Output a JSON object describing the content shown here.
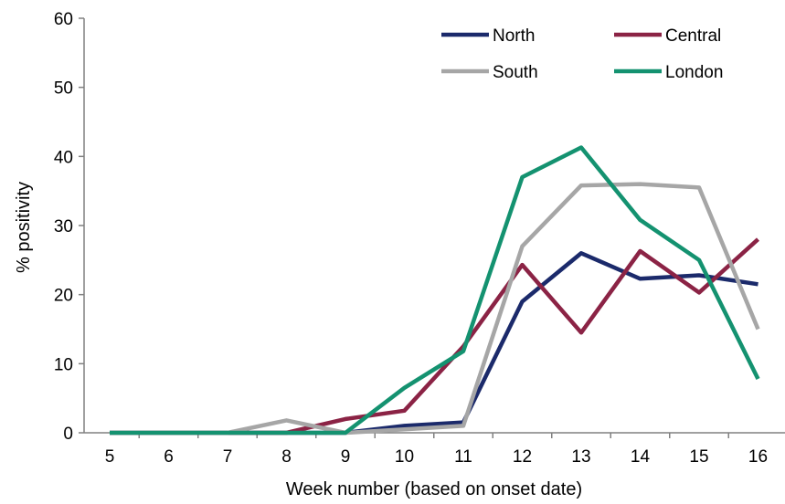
{
  "chart_data": {
    "type": "line",
    "title": "",
    "xlabel": "Week number (based on onset date)",
    "ylabel": "% positivity",
    "x": [
      5,
      6,
      7,
      8,
      9,
      10,
      11,
      12,
      13,
      14,
      15,
      16
    ],
    "xticks": [
      "5",
      "6",
      "7",
      "8",
      "9",
      "10",
      "11",
      "12",
      "13",
      "14",
      "15",
      "16"
    ],
    "ylim": [
      0,
      60
    ],
    "yticks": [
      "0",
      "10",
      "20",
      "30",
      "40",
      "50",
      "60"
    ],
    "grid": false,
    "legend_position": "top-right",
    "series": [
      {
        "name": "North",
        "color": "#1b2a6b",
        "values": [
          0,
          0,
          0,
          0,
          0,
          1,
          1.5,
          19,
          26,
          22.3,
          22.8,
          21.5
        ]
      },
      {
        "name": "Central",
        "color": "#8b2345",
        "values": [
          0,
          0,
          0,
          0,
          2,
          3.2,
          12.5,
          24.3,
          14.5,
          26.3,
          20.3,
          28
        ]
      },
      {
        "name": "South",
        "color": "#a6a6a6",
        "values": [
          0,
          0,
          0,
          1.8,
          0,
          0.5,
          1,
          27,
          35.8,
          36,
          35.5,
          15
        ]
      },
      {
        "name": "London",
        "color": "#149270",
        "values": [
          0,
          0,
          0,
          0,
          0,
          6.5,
          11.8,
          37,
          41.3,
          30.8,
          25,
          7.8
        ]
      }
    ]
  }
}
